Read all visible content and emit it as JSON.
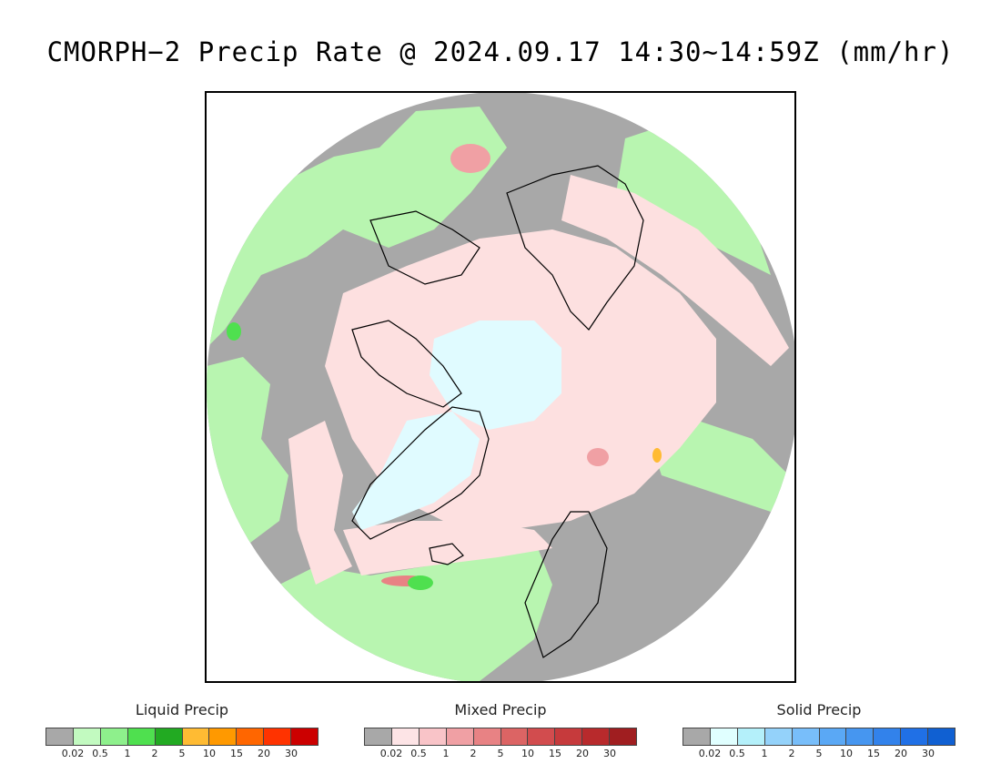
{
  "title": "CMORPH−2 Precip Rate @ 2024.09.17 14:30~14:59Z (mm/hr)",
  "map": {
    "projection": "north polar stereographic",
    "colors": {
      "no_precip": "#a8a8a8",
      "liquid_light": "#b8f5b0",
      "mixed_light": "#fde0e0",
      "solid_light": "#e0fbff",
      "coastline": "#000000",
      "frame": "#000000"
    }
  },
  "legends": [
    {
      "title": "Liquid Precip",
      "ticks": [
        "0.02",
        "0.5",
        "1",
        "2",
        "5",
        "10",
        "15",
        "20",
        "30"
      ],
      "colors": [
        "#a8a8a8",
        "#c2fac0",
        "#8ef08c",
        "#4fe04f",
        "#22aa22",
        "#ffbb33",
        "#ff9900",
        "#ff6600",
        "#ff3300",
        "#cc0000"
      ]
    },
    {
      "title": "Mixed Precip",
      "ticks": [
        "0.02",
        "0.5",
        "1",
        "2",
        "5",
        "10",
        "15",
        "20",
        "30"
      ],
      "colors": [
        "#a8a8a8",
        "#fde4e6",
        "#f9c4c8",
        "#f0a0a4",
        "#e88284",
        "#dc6464",
        "#d24c4e",
        "#c63a3c",
        "#b82a2c",
        "#a01e20"
      ]
    },
    {
      "title": "Solid Precip",
      "ticks": [
        "0.02",
        "0.5",
        "1",
        "2",
        "5",
        "10",
        "15",
        "20",
        "30"
      ],
      "colors": [
        "#a8a8a8",
        "#e0ffff",
        "#b4f0fa",
        "#94d2fa",
        "#78befa",
        "#5aa8f5",
        "#4696f0",
        "#3282eb",
        "#2070e6",
        "#1060d2"
      ]
    }
  ]
}
